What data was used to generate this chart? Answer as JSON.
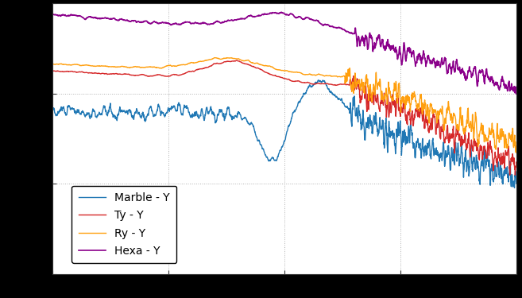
{
  "title": "",
  "xlabel": "",
  "ylabel": "",
  "xlim": [
    0,
    200
  ],
  "ylim": [
    -80,
    -20
  ],
  "bg_color": "#000000",
  "plot_bg_color": "#ffffff",
  "grid_color": "#b0b0b0",
  "colors": {
    "marble": "#1f77b4",
    "ty": "#d62728",
    "ry": "#ff9f0e",
    "hexa": "#8B008B"
  },
  "legend_labels": [
    "Marble - Y",
    "Ty - Y",
    "Ry - Y",
    "Hexa - Y"
  ],
  "legend_loc": "lower left",
  "tick_fontsize": 10,
  "legend_fontsize": 10
}
